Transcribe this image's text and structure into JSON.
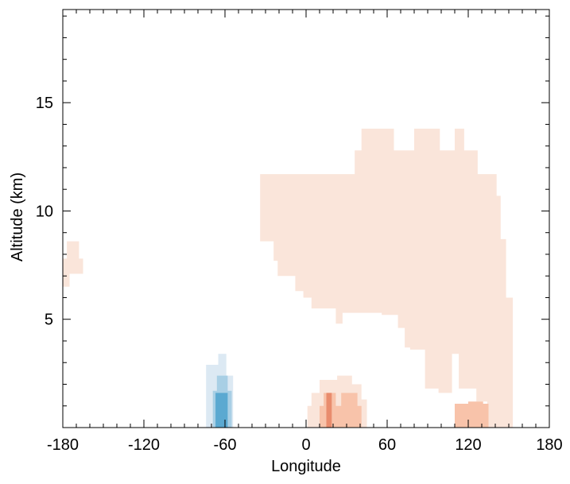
{
  "chart_data": {
    "type": "heatmap",
    "title": "",
    "xlabel": "Longitude",
    "ylabel": "Altitude (km)",
    "xlim": [
      -180,
      180
    ],
    "ylim": [
      0,
      19.3
    ],
    "xticks": [
      -180,
      -120,
      -60,
      0,
      60,
      120,
      180
    ],
    "yticks": [
      5,
      10,
      15
    ],
    "x_minor_step": 10,
    "y_minor_step": 1,
    "grid": false,
    "legend": "none",
    "colors": {
      "pos_light": "#fae5da",
      "pos_mid": "#f8c3aa",
      "pos_strong": "#e98c6d",
      "neg_light": "#dce9f3",
      "neg_mid": "#a8cfe5",
      "neg_strong": "#5ba9d1"
    },
    "regions": [
      {
        "level": "pos_light",
        "polygon": [
          [
            -180,
            6.5
          ],
          [
            -175,
            6.5
          ],
          [
            -175,
            7.1
          ],
          [
            -165,
            7.1
          ],
          [
            -165,
            7.8
          ],
          [
            -168,
            7.8
          ],
          [
            -168,
            8.6
          ],
          [
            -177,
            8.6
          ],
          [
            -177,
            7.8
          ],
          [
            -180,
            7.8
          ]
        ]
      },
      {
        "level": "pos_light",
        "polygon": [
          [
            -34,
            11.7
          ],
          [
            36,
            11.7
          ],
          [
            36,
            12.8
          ],
          [
            41,
            12.8
          ],
          [
            41,
            13.8
          ],
          [
            65,
            13.8
          ],
          [
            65,
            12.8
          ],
          [
            80,
            12.8
          ],
          [
            80,
            13.8
          ],
          [
            99,
            13.8
          ],
          [
            99,
            12.8
          ],
          [
            110,
            12.8
          ],
          [
            110,
            13.8
          ],
          [
            117,
            13.8
          ],
          [
            117,
            12.8
          ],
          [
            127,
            12.8
          ],
          [
            127,
            11.7
          ],
          [
            141,
            11.7
          ],
          [
            141,
            10.7
          ],
          [
            144,
            10.7
          ],
          [
            144,
            8.7
          ],
          [
            148,
            8.7
          ],
          [
            148,
            6.0
          ],
          [
            153,
            6.0
          ],
          [
            153,
            5.3
          ],
          [
            153,
            0
          ],
          [
            134,
            0
          ],
          [
            134,
            1.2
          ],
          [
            126,
            1.2
          ],
          [
            126,
            1.8
          ],
          [
            113,
            1.8
          ],
          [
            113,
            3.4
          ],
          [
            108,
            3.4
          ],
          [
            108,
            1.6
          ],
          [
            98,
            1.6
          ],
          [
            98,
            1.8
          ],
          [
            88,
            1.8
          ],
          [
            88,
            3.6
          ],
          [
            77,
            3.6
          ],
          [
            77,
            3.7
          ],
          [
            73,
            3.7
          ],
          [
            73,
            4.6
          ],
          [
            68,
            4.6
          ],
          [
            68,
            5.2
          ],
          [
            56,
            5.2
          ],
          [
            56,
            5.3
          ],
          [
            27,
            5.3
          ],
          [
            27,
            4.8
          ],
          [
            22,
            4.8
          ],
          [
            22,
            5.5
          ],
          [
            12,
            5.5
          ],
          [
            12,
            5.5
          ],
          [
            4,
            5.5
          ],
          [
            4,
            6.0
          ],
          [
            -2,
            6.0
          ],
          [
            -2,
            6.3
          ],
          [
            -8,
            6.3
          ],
          [
            -8,
            7.0
          ],
          [
            -21,
            7.0
          ],
          [
            -21,
            7.7
          ],
          [
            -24,
            7.7
          ],
          [
            -24,
            8.6
          ],
          [
            -34,
            8.6
          ]
        ]
      },
      {
        "level": "pos_light",
        "polygon": [
          [
            4,
            1.6
          ],
          [
            10,
            1.6
          ],
          [
            10,
            2.2
          ],
          [
            23,
            2.2
          ],
          [
            23,
            2.4
          ],
          [
            34,
            2.4
          ],
          [
            34,
            2.0
          ],
          [
            41,
            2.0
          ],
          [
            41,
            1.3
          ],
          [
            45,
            1.3
          ],
          [
            45,
            0
          ],
          [
            1,
            0
          ],
          [
            1,
            1.0
          ],
          [
            4,
            1.0
          ]
        ]
      },
      {
        "level": "pos_mid",
        "polygon": [
          [
            10,
            1.0
          ],
          [
            13,
            1.0
          ],
          [
            13,
            1.6
          ],
          [
            22,
            1.6
          ],
          [
            22,
            1.0
          ],
          [
            26,
            1.0
          ],
          [
            26,
            1.6
          ],
          [
            38,
            1.6
          ],
          [
            38,
            1.0
          ],
          [
            41,
            1.0
          ],
          [
            41,
            0
          ],
          [
            10,
            0
          ]
        ]
      },
      {
        "level": "pos_strong",
        "polygon": [
          [
            15,
            0
          ],
          [
            19,
            0
          ],
          [
            19,
            1.6
          ],
          [
            15,
            1.6
          ]
        ]
      },
      {
        "level": "pos_mid",
        "polygon": [
          [
            110,
            0
          ],
          [
            135,
            0
          ],
          [
            135,
            1.1
          ],
          [
            131,
            1.1
          ],
          [
            131,
            1.2
          ],
          [
            120,
            1.2
          ],
          [
            120,
            1.1
          ],
          [
            110,
            1.1
          ]
        ]
      },
      {
        "level": "neg_light",
        "polygon": [
          [
            -74,
            2.9
          ],
          [
            -65,
            2.9
          ],
          [
            -65,
            3.4
          ],
          [
            -59,
            3.4
          ],
          [
            -59,
            2.4
          ],
          [
            -54,
            2.4
          ],
          [
            -54,
            0
          ],
          [
            -74,
            0
          ]
        ]
      },
      {
        "level": "neg_mid",
        "polygon": [
          [
            -69,
            0
          ],
          [
            -55,
            0
          ],
          [
            -55,
            1.7
          ],
          [
            -58,
            1.7
          ],
          [
            -58,
            2.4
          ],
          [
            -66,
            2.4
          ],
          [
            -66,
            1.7
          ],
          [
            -69,
            1.7
          ]
        ]
      },
      {
        "level": "neg_strong",
        "polygon": [
          [
            -67,
            0
          ],
          [
            -58,
            0
          ],
          [
            -58,
            1.6
          ],
          [
            -67,
            1.6
          ]
        ]
      }
    ]
  }
}
